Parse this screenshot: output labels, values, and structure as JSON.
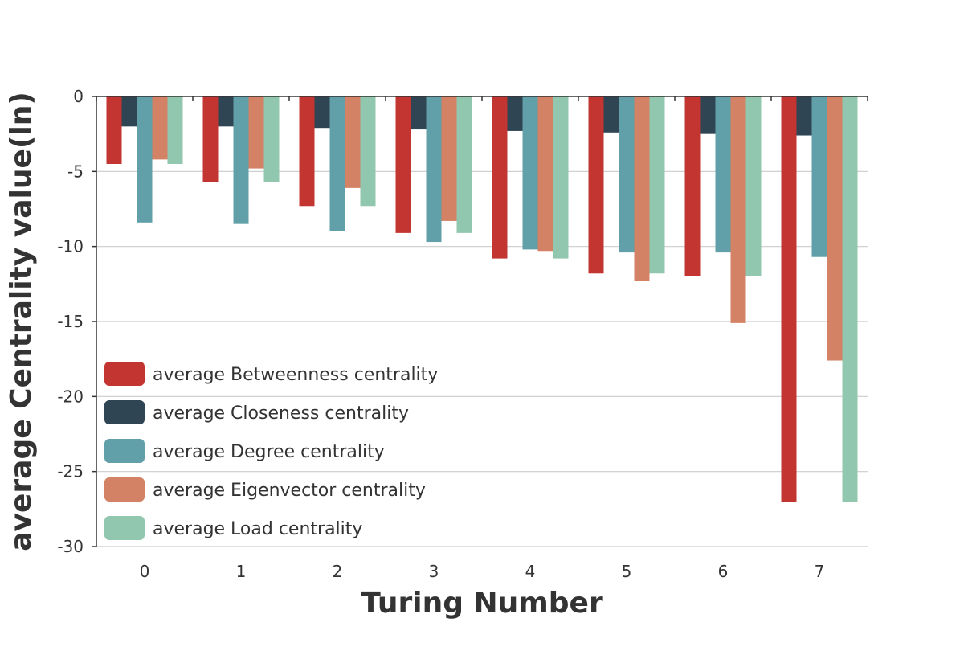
{
  "chart_data": {
    "type": "bar",
    "title": "",
    "xlabel": "Turing Number",
    "ylabel": "average Centrality value(ln)",
    "categories": [
      "0",
      "1",
      "2",
      "3",
      "4",
      "5",
      "6",
      "7"
    ],
    "ylim": [
      -30,
      0
    ],
    "yticks": [
      0,
      -5,
      -10,
      -15,
      -20,
      -25,
      -30
    ],
    "grid": true,
    "legend_position": "bottom-left",
    "series": [
      {
        "name": "average Betweenness centrality",
        "color": "#c23531",
        "values": [
          -4.5,
          -5.7,
          -7.3,
          -9.1,
          -10.8,
          -11.8,
          -12.0,
          -27.0
        ]
      },
      {
        "name": "average Closeness centrality",
        "color": "#2f4554",
        "values": [
          -2.0,
          -2.0,
          -2.1,
          -2.2,
          -2.3,
          -2.4,
          -2.5,
          -2.6
        ]
      },
      {
        "name": "average Degree centrality",
        "color": "#61a0a8",
        "values": [
          -8.4,
          -8.5,
          -9.0,
          -9.7,
          -10.2,
          -10.4,
          -10.4,
          -10.7
        ]
      },
      {
        "name": "average Eigenvector centrality",
        "color": "#d48265",
        "values": [
          -4.2,
          -4.8,
          -6.1,
          -8.3,
          -10.3,
          -12.3,
          -15.1,
          -17.6
        ]
      },
      {
        "name": "average Load centrality",
        "color": "#91c7ae",
        "values": [
          -4.5,
          -5.7,
          -7.3,
          -9.1,
          -10.8,
          -11.8,
          -12.0,
          -27.0
        ]
      }
    ]
  }
}
